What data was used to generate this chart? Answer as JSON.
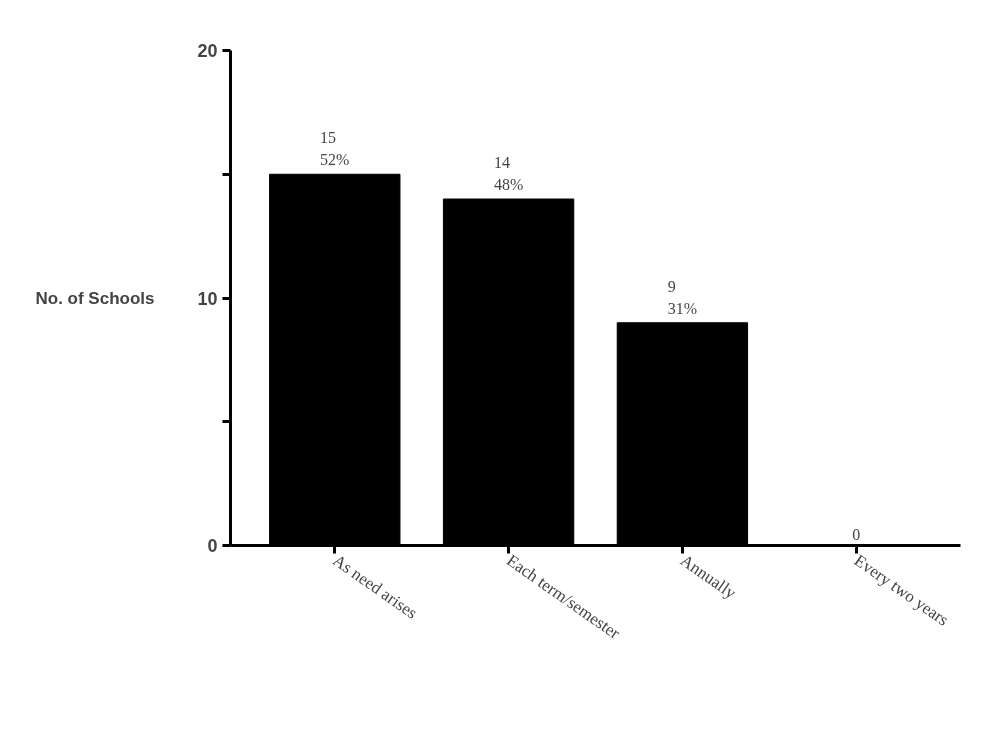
{
  "chart_data": {
    "type": "bar",
    "ylabel": "No. of Schools",
    "categories": [
      "As need arises",
      "Each term/semester",
      "Annually",
      "Every two years"
    ],
    "values": [
      15,
      14,
      9,
      0
    ],
    "color": "#000000",
    "value_labels": [
      "15\n52%",
      "14\n48%",
      "9\n31%",
      "0"
    ],
    "ylim": [
      0,
      20
    ],
    "yticks": [
      0,
      {
        "value": 5,
        "label": null
      },
      10,
      {
        "value": 15,
        "label": null
      },
      20
    ],
    "grid": false
  }
}
